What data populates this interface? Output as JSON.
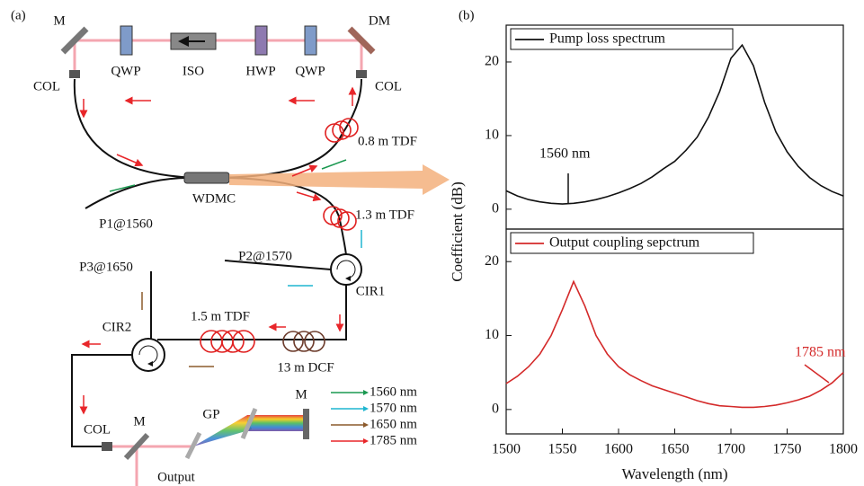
{
  "panel_a": {
    "label": "(a)",
    "labels": [
      "M",
      "DM",
      "QWP",
      "ISO",
      "HWP",
      "QWP",
      "COL",
      "COL",
      "0.8 m TDF",
      "WDMC",
      "P1@1560",
      "1.3 m TDF",
      "P2@1570",
      "CIR1",
      "P3@1650",
      "CIR2",
      "1.5 m TDF",
      "13 m DCF",
      "COL",
      "M",
      "GP",
      "M",
      "Output"
    ],
    "legend": [
      {
        "name": "1560 nm",
        "color": "#1a9850"
      },
      {
        "name": "1570 nm",
        "color": "#1fb6d0"
      },
      {
        "name": "1650 nm",
        "color": "#8c5a2b"
      },
      {
        "name": "1785 nm",
        "color": "#e8262a"
      }
    ]
  },
  "panel_b": {
    "label": "(b)",
    "y_label": "Coefficient (dB)"
  },
  "chart_data": [
    {
      "type": "line",
      "annotation": "1560 nm",
      "xlim": [
        1500,
        1800
      ],
      "ylim": [
        -2.7,
        25
      ],
      "yticks": [
        0,
        10,
        20
      ],
      "legend": "upper left",
      "x": [
        1500,
        1510,
        1520,
        1530,
        1540,
        1550,
        1560,
        1570,
        1580,
        1590,
        1600,
        1610,
        1620,
        1630,
        1640,
        1650,
        1660,
        1670,
        1680,
        1690,
        1700,
        1710,
        1720,
        1730,
        1740,
        1750,
        1760,
        1770,
        1780,
        1790,
        1800
      ],
      "series": [
        {
          "name": "Pump loss spectrum",
          "color": "#111111",
          "values": [
            2.5,
            1.8,
            1.3,
            1.0,
            0.8,
            0.7,
            0.8,
            1.0,
            1.3,
            1.7,
            2.2,
            2.8,
            3.5,
            4.4,
            5.5,
            6.5,
            8,
            9.8,
            12.5,
            16,
            20.5,
            22.3,
            19.5,
            14.5,
            10.5,
            7.8,
            5.8,
            4.3,
            3.2,
            2.4,
            1.8
          ]
        }
      ]
    },
    {
      "type": "line",
      "annotation": "1785 nm",
      "x_label": "Wavelength (nm)",
      "xlim": [
        1500,
        1800
      ],
      "ylim": [
        -3.3,
        24.4
      ],
      "yticks": [
        0,
        10,
        20
      ],
      "xticks": [
        1500,
        1550,
        1600,
        1650,
        1700,
        1750,
        1800
      ],
      "legend": "upper left",
      "x": [
        1500,
        1510,
        1520,
        1530,
        1540,
        1550,
        1560,
        1570,
        1580,
        1590,
        1600,
        1610,
        1620,
        1630,
        1640,
        1650,
        1660,
        1670,
        1680,
        1690,
        1700,
        1710,
        1720,
        1730,
        1740,
        1750,
        1760,
        1770,
        1780,
        1790,
        1800
      ],
      "series": [
        {
          "name": "Output coupling sepctrum",
          "color": "#d42a2a",
          "values": [
            3.5,
            4.5,
            5.8,
            7.5,
            10,
            13.5,
            17.3,
            14,
            10,
            7.5,
            5.8,
            4.7,
            3.9,
            3.2,
            2.7,
            2.2,
            1.7,
            1.2,
            0.8,
            0.5,
            0.4,
            0.3,
            0.3,
            0.4,
            0.6,
            0.9,
            1.3,
            1.8,
            2.6,
            3.6,
            5
          ]
        }
      ]
    }
  ]
}
